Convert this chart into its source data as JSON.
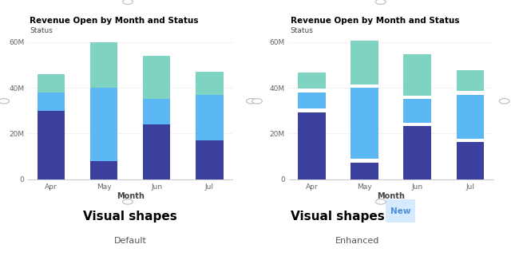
{
  "title": "Revenue Open by Month and Status",
  "xlabel": "Month",
  "categories": [
    "Apr",
    "May",
    "Jun",
    "Jul"
  ],
  "won": [
    30,
    8,
    24,
    17
  ],
  "open": [
    8,
    32,
    11,
    20
  ],
  "lost": [
    8,
    20,
    19,
    10
  ],
  "color_won": "#3B3F9E",
  "color_open": "#5BB8F5",
  "color_lost": "#7FD4C1",
  "ylim": [
    0,
    65
  ],
  "yticks": [
    0,
    20,
    40,
    60
  ],
  "ytick_labels": [
    "0",
    "20M",
    "40M",
    "60M"
  ],
  "panel_bg": "#FFFFFF",
  "title1": "Visual shapes",
  "sub1": "Default",
  "title2": "Visual shapes",
  "sub2": "Enhanced",
  "new_badge_color": "#D6EAFF",
  "new_badge_text": "New",
  "new_badge_text_color": "#4A90D9",
  "grid_color": "#E0E0E0",
  "axis_label_color": "#444444",
  "tick_label_color": "#666666",
  "border_color": "#CCCCCC",
  "circle_color": "#BBBBBB"
}
